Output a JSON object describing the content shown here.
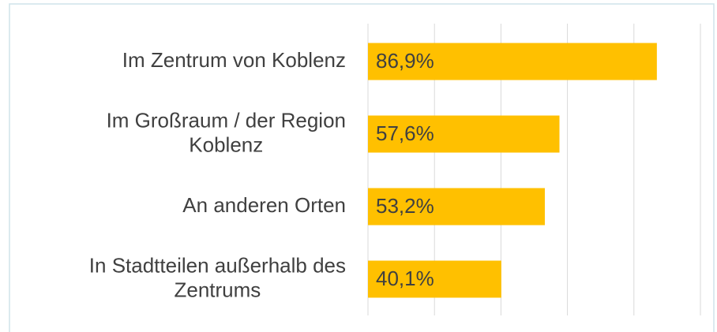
{
  "chart_data": {
    "type": "barh",
    "categories": [
      "Im Zentrum von Koblenz",
      "Im Großraum / der Region Koblenz",
      "An anderen Orten",
      "In Stadtteilen außerhalb des Zentrums"
    ],
    "values": [
      86.9,
      57.6,
      53.2,
      40.1
    ],
    "value_labels": [
      "86,9%",
      "57,6%",
      "53,2%",
      "40,1%"
    ],
    "color": "#ffc000",
    "xlim": [
      0,
      100
    ],
    "xticks": [
      0,
      20,
      40,
      60,
      80,
      100
    ],
    "grid": true
  }
}
